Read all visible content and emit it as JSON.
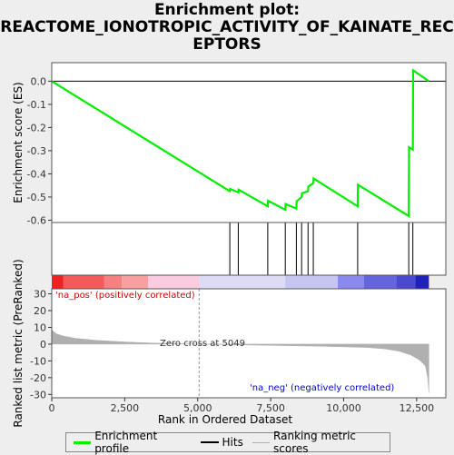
{
  "title_lines": [
    "Enrichment plot:",
    "REACTOME_IONOTROPIC_ACTIVITY_OF_KAINATE_REC",
    "EPTORS"
  ],
  "chart_data": {
    "type": "line",
    "top_panel": {
      "ylabel": "Enrichment score (ES)",
      "ylim": [
        -0.61,
        0.08
      ],
      "yticks": [
        0.0,
        -0.1,
        -0.2,
        -0.3,
        -0.4,
        -0.5,
        -0.6
      ],
      "ytick_labels": [
        "0.0",
        "-0.1",
        "-0.2",
        "-0.3",
        "-0.4",
        "-0.5",
        "-0.6"
      ],
      "series": [
        {
          "name": "Enrichment profile",
          "color": "#00ee00",
          "points": [
            [
              0,
              0.0
            ],
            [
              6100,
              -0.475
            ],
            [
              6110,
              -0.465
            ],
            [
              6390,
              -0.48
            ],
            [
              6400,
              -0.468
            ],
            [
              7400,
              -0.54
            ],
            [
              7410,
              -0.516
            ],
            [
              8000,
              -0.555
            ],
            [
              8010,
              -0.53
            ],
            [
              8380,
              -0.55
            ],
            [
              8390,
              -0.518
            ],
            [
              8560,
              -0.5
            ],
            [
              8570,
              -0.484
            ],
            [
              8780,
              -0.475
            ],
            [
              8790,
              -0.455
            ],
            [
              8960,
              -0.44
            ],
            [
              8970,
              -0.42
            ],
            [
              10480,
              -0.54
            ],
            [
              10490,
              -0.447
            ],
            [
              12230,
              -0.582
            ],
            [
              12240,
              -0.285
            ],
            [
              12370,
              -0.295
            ],
            [
              12380,
              0.047
            ],
            [
              12920,
              0.0
            ]
          ]
        }
      ]
    },
    "hits": [
      6100,
      6390,
      7400,
      8000,
      8380,
      8560,
      8780,
      8960,
      10480,
      12230,
      12370
    ],
    "bottom_panel": {
      "ylabel": "Ranked list metric (PreRanked)",
      "ylim": [
        -32,
        33
      ],
      "yticks": [
        30,
        20,
        10,
        0,
        -10,
        -20,
        -30
      ],
      "ytick_labels": [
        "30",
        "20",
        "10",
        "0",
        "-10",
        "-20",
        "-30"
      ],
      "metric_color": "#b0b0b0",
      "metric_points": [
        [
          0,
          8.5
        ],
        [
          150,
          6.2
        ],
        [
          400,
          4.8
        ],
        [
          800,
          3.5
        ],
        [
          1500,
          2.3
        ],
        [
          2500,
          1.3
        ],
        [
          3500,
          0.6
        ],
        [
          4500,
          0.2
        ],
        [
          5049,
          0.0
        ],
        [
          6000,
          -0.3
        ],
        [
          7000,
          -0.6
        ],
        [
          8000,
          -0.9
        ],
        [
          9000,
          -1.2
        ],
        [
          10000,
          -1.6
        ],
        [
          10800,
          -2.0
        ],
        [
          11400,
          -2.8
        ],
        [
          11900,
          -4.2
        ],
        [
          12300,
          -6.5
        ],
        [
          12600,
          -9.5
        ],
        [
          12800,
          -13
        ],
        [
          12880,
          -20
        ],
        [
          12920,
          -29
        ]
      ],
      "zero_cross_x": 5049,
      "zero_cross_label": "Zero cross at 5049",
      "pos_label": "'na_pos' (positively correlated)",
      "neg_label": "'na_neg' (negatively correlated)",
      "pos_label_color": "#cc0000",
      "neg_label_color": "#0000cc"
    },
    "xlabel": "Rank in Ordered Dataset",
    "xlim": [
      0,
      13500
    ],
    "xticks": [
      0,
      2500,
      5000,
      7500,
      10000,
      12500
    ],
    "xtick_labels": [
      "0",
      "2,500",
      "5,000",
      "7,500",
      "10,000",
      "12,500"
    ],
    "color_bar": [
      {
        "from": 0,
        "to": 400,
        "color": "#ee2222"
      },
      {
        "from": 400,
        "to": 1800,
        "color": "#f45a5a"
      },
      {
        "from": 1800,
        "to": 2400,
        "color": "#f68080"
      },
      {
        "from": 2400,
        "to": 3300,
        "color": "#f8a0a0"
      },
      {
        "from": 3300,
        "to": 5049,
        "color": "#fbcbe0"
      },
      {
        "from": 5049,
        "to": 8000,
        "color": "#dcdcf6"
      },
      {
        "from": 8000,
        "to": 9800,
        "color": "#c6c6f2"
      },
      {
        "from": 9800,
        "to": 10700,
        "color": "#8a8aee"
      },
      {
        "from": 10700,
        "to": 11800,
        "color": "#6464dc"
      },
      {
        "from": 11800,
        "to": 12450,
        "color": "#4a4ad0"
      },
      {
        "from": 12450,
        "to": 12920,
        "color": "#2020bb"
      }
    ],
    "legend": [
      {
        "label": "Enrichment profile",
        "color": "#00ee00"
      },
      {
        "label": "Hits",
        "color": "#000000"
      },
      {
        "label": "Ranking metric scores",
        "color": "#b0b0b0"
      }
    ]
  }
}
